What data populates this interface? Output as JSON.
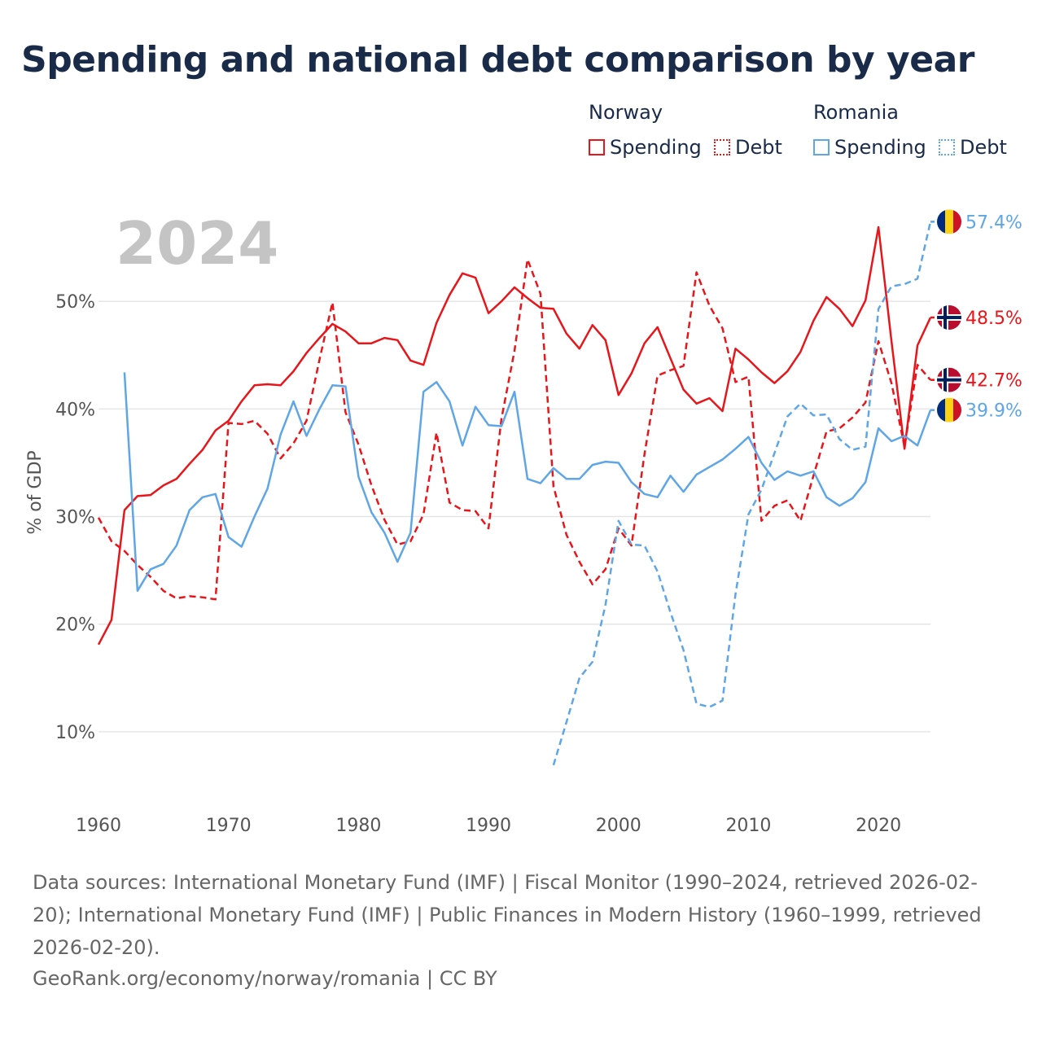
{
  "title": "Spending and national debt comparison by year",
  "legend": {
    "groups": [
      {
        "name": "Norway",
        "color": "#e8151b",
        "items": [
          {
            "label": "Spending",
            "style": "solid"
          },
          {
            "label": "Debt",
            "style": "dotted"
          }
        ]
      },
      {
        "name": "Romania",
        "color": "#5ea6e6",
        "items": [
          {
            "label": "Spending",
            "style": "solid"
          },
          {
            "label": "Debt",
            "style": "dotted"
          }
        ]
      }
    ]
  },
  "footer": {
    "sources": "Data sources: International Monetary Fund (IMF) | Fiscal Monitor (1990–2024, retrieved 2026-02-20); International Monetary Fund (IMF) | Public Finances in Modern History (1960–1999, retrieved 2026-02-20).",
    "credit": "GeoRank.org/economy/norway/romania | CC BY"
  },
  "chart_data": {
    "type": "line",
    "year_label": "2024",
    "ylabel": "% of GDP",
    "xlabel": "",
    "xlim": [
      1960,
      2024
    ],
    "ylim": [
      5,
      60
    ],
    "x_ticks": [
      1960,
      1970,
      1980,
      1990,
      2000,
      2010,
      2020
    ],
    "y_ticks": [
      10,
      20,
      30,
      40,
      50
    ],
    "y_tick_labels": [
      "10%",
      "20%",
      "30%",
      "40%",
      "50%"
    ],
    "series": [
      {
        "name": "Norway Spending",
        "country": "Norway",
        "flag": "norway",
        "color": "#e8151b",
        "dash": "solid",
        "end_label": "48.5%",
        "start_year": 1960,
        "values": [
          18.1,
          20.4,
          30.6,
          31.9,
          32.0,
          32.9,
          33.5,
          34.9,
          36.2,
          38.0,
          38.9,
          40.7,
          42.2,
          42.3,
          42.2,
          43.5,
          45.2,
          46.6,
          47.9,
          47.2,
          46.1,
          46.1,
          46.6,
          46.4,
          44.5,
          44.1,
          48.0,
          50.6,
          52.6,
          52.2,
          48.9,
          50.0,
          51.3,
          50.3,
          49.4,
          49.3,
          47.0,
          45.6,
          47.8,
          46.4,
          41.3,
          43.3,
          46.1,
          47.6,
          44.7,
          41.8,
          40.5,
          41.0,
          39.8,
          45.6,
          44.6,
          43.4,
          42.4,
          43.5,
          45.3,
          48.2,
          50.4,
          49.3,
          47.7,
          50.1,
          56.9,
          46.3,
          36.3,
          45.9,
          48.5
        ]
      },
      {
        "name": "Norway Debt",
        "country": "Norway",
        "flag": "norway",
        "color": "#e8151b",
        "dash": "dashed",
        "end_label": "42.7%",
        "start_year": 1960,
        "values": [
          29.9,
          27.7,
          26.8,
          25.5,
          24.4,
          23.1,
          22.4,
          22.6,
          22.5,
          22.3,
          38.7,
          38.6,
          38.9,
          37.7,
          35.4,
          36.8,
          38.9,
          44.6,
          49.9,
          39.7,
          36.7,
          32.9,
          29.7,
          27.4,
          27.7,
          30.2,
          37.8,
          31.3,
          30.6,
          30.5,
          28.9,
          39.1,
          45.4,
          53.9,
          50.7,
          32.8,
          28.3,
          25.8,
          23.7,
          25.1,
          28.9,
          27.3,
          35.8,
          43.1,
          43.6,
          44.0,
          52.7,
          49.6,
          47.5,
          42.5,
          43.0,
          29.6,
          31.0,
          31.5,
          29.6,
          33.8,
          37.9,
          38.2,
          39.2,
          40.6,
          46.3,
          42.4,
          36.5,
          44.1,
          42.7
        ]
      },
      {
        "name": "Romania Spending",
        "country": "Romania",
        "flag": "romania",
        "color": "#5ea6e6",
        "dash": "solid",
        "end_label": "39.9%",
        "start_year": 1962,
        "values": [
          43.4,
          23.1,
          25.1,
          25.6,
          27.3,
          30.6,
          31.8,
          32.1,
          28.1,
          27.2,
          30.0,
          32.6,
          37.6,
          40.7,
          37.5,
          40.0,
          42.2,
          42.1,
          33.7,
          30.4,
          28.5,
          25.8,
          28.5,
          41.6,
          42.5,
          40.7,
          36.6,
          40.2,
          38.5,
          38.4,
          41.6,
          33.5,
          33.1,
          34.5,
          33.5,
          33.5,
          34.8,
          35.1,
          35.0,
          33.2,
          32.1,
          31.8,
          33.8,
          32.3,
          33.9,
          34.6,
          35.3,
          36.3,
          37.4,
          35.0,
          33.4,
          34.2,
          33.8,
          34.2,
          31.8,
          31.0,
          31.7,
          33.2,
          38.2,
          37.0,
          37.5,
          36.6,
          39.9
        ]
      },
      {
        "name": "Romania Debt",
        "country": "Romania",
        "flag": "romania",
        "color": "#5ea6e6",
        "dash": "dashed",
        "end_label": "57.4%",
        "start_year": 1995,
        "values": [
          6.9,
          10.9,
          15.0,
          16.5,
          21.8,
          29.6,
          27.4,
          27.3,
          24.9,
          21.1,
          17.6,
          12.6,
          12.3,
          12.9,
          22.8,
          30.2,
          32.5,
          35.9,
          39.3,
          40.5,
          39.4,
          39.5,
          37.2,
          36.2,
          36.5,
          49.3,
          51.4,
          51.6,
          52.1,
          57.4
        ]
      }
    ]
  }
}
